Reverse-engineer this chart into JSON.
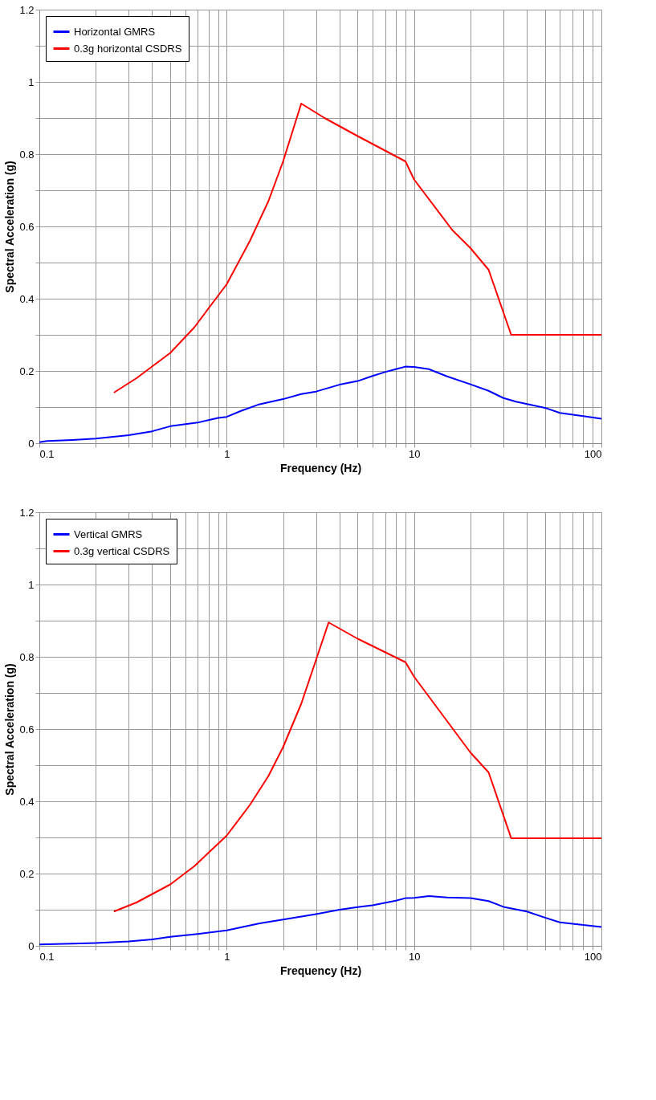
{
  "chart_data": [
    {
      "type": "line",
      "xlabel": "Frequency (Hz)",
      "ylabel": "Spectral Acceleration (g)",
      "log": "x",
      "grid": true,
      "legend": "top left",
      "line_style": "solid",
      "xlim": [
        0.1,
        100
      ],
      "ylim": [
        0,
        1.2
      ],
      "xticks": [
        0.1,
        {
          "value": 0.2,
          "label": null
        },
        {
          "value": 0.3,
          "label": null
        },
        {
          "value": 0.4,
          "label": null
        },
        {
          "value": 0.5,
          "label": null
        },
        {
          "value": 0.6,
          "label": null
        },
        {
          "value": 0.7,
          "label": null
        },
        {
          "value": 0.8,
          "label": null
        },
        {
          "value": 0.9,
          "label": null
        },
        1,
        {
          "value": 2,
          "label": null
        },
        {
          "value": 3,
          "label": null
        },
        {
          "value": 4,
          "label": null
        },
        {
          "value": 5,
          "label": null
        },
        {
          "value": 6,
          "label": null
        },
        {
          "value": 7,
          "label": null
        },
        {
          "value": 8,
          "label": null
        },
        {
          "value": 9,
          "label": null
        },
        10,
        {
          "value": 20,
          "label": null
        },
        {
          "value": 30,
          "label": null
        },
        {
          "value": 40,
          "label": null
        },
        {
          "value": 50,
          "label": null
        },
        {
          "value": 60,
          "label": null
        },
        {
          "value": 70,
          "label": null
        },
        {
          "value": 80,
          "label": null
        },
        {
          "value": 90,
          "label": null
        },
        100
      ],
      "yticks": [
        0,
        {
          "value": 0.1,
          "label": null
        },
        0.2,
        {
          "value": 0.3,
          "label": null
        },
        0.4,
        {
          "value": 0.5,
          "label": null
        },
        0.6,
        {
          "value": 0.7,
          "label": null
        },
        0.8,
        {
          "value": 0.9,
          "label": null
        },
        1,
        {
          "value": 1.1,
          "label": null
        },
        1.2
      ],
      "series": [
        {
          "name": "Horizontal GMRS",
          "color": "#0000ff",
          "x": [
            0.1,
            0.11,
            0.15,
            0.2,
            0.3,
            0.4,
            0.5,
            0.7,
            0.9,
            1,
            1.2,
            1.5,
            2,
            2.5,
            3,
            4,
            5,
            6,
            7,
            8,
            9,
            10,
            12,
            15,
            20,
            25,
            30,
            35,
            50,
            60,
            80,
            100
          ],
          "values": [
            0.003,
            0.006,
            0.009,
            0.013,
            0.022,
            0.033,
            0.047,
            0.057,
            0.07,
            0.073,
            0.09,
            0.108,
            0.122,
            0.136,
            0.143,
            0.162,
            0.172,
            0.186,
            0.197,
            0.205,
            0.212,
            0.211,
            0.205,
            0.185,
            0.163,
            0.145,
            0.125,
            0.115,
            0.098,
            0.084,
            0.075,
            0.068
          ]
        },
        {
          "name": "0.3g horizontal CSDRS",
          "color": "#ff0000",
          "x": [
            0.25,
            0.33,
            0.5,
            0.67,
            1,
            1.33,
            1.67,
            2,
            2.5,
            3.33,
            5,
            9,
            10,
            16,
            20,
            25,
            33,
            100
          ],
          "values": [
            0.14,
            0.18,
            0.25,
            0.32,
            0.44,
            0.56,
            0.67,
            0.78,
            0.94,
            0.9,
            0.85,
            0.78,
            0.73,
            0.59,
            0.54,
            0.48,
            0.3,
            0.3
          ]
        }
      ]
    },
    {
      "type": "line",
      "xlabel": "Frequency (Hz)",
      "ylabel": "Spectral Acceleration (g)",
      "log": "x",
      "grid": true,
      "legend": "top left",
      "line_style": "solid",
      "xlim": [
        0.1,
        100
      ],
      "ylim": [
        0,
        1.2
      ],
      "xticks": [
        0.1,
        {
          "value": 0.2,
          "label": null
        },
        {
          "value": 0.3,
          "label": null
        },
        {
          "value": 0.4,
          "label": null
        },
        {
          "value": 0.5,
          "label": null
        },
        {
          "value": 0.6,
          "label": null
        },
        {
          "value": 0.7,
          "label": null
        },
        {
          "value": 0.8,
          "label": null
        },
        {
          "value": 0.9,
          "label": null
        },
        1,
        {
          "value": 2,
          "label": null
        },
        {
          "value": 3,
          "label": null
        },
        {
          "value": 4,
          "label": null
        },
        {
          "value": 5,
          "label": null
        },
        {
          "value": 6,
          "label": null
        },
        {
          "value": 7,
          "label": null
        },
        {
          "value": 8,
          "label": null
        },
        {
          "value": 9,
          "label": null
        },
        10,
        {
          "value": 20,
          "label": null
        },
        {
          "value": 30,
          "label": null
        },
        {
          "value": 40,
          "label": null
        },
        {
          "value": 50,
          "label": null
        },
        {
          "value": 60,
          "label": null
        },
        {
          "value": 70,
          "label": null
        },
        {
          "value": 80,
          "label": null
        },
        {
          "value": 90,
          "label": null
        },
        100
      ],
      "yticks": [
        0,
        {
          "value": 0.1,
          "label": null
        },
        0.2,
        {
          "value": 0.3,
          "label": null
        },
        0.4,
        {
          "value": 0.5,
          "label": null
        },
        0.6,
        {
          "value": 0.7,
          "label": null
        },
        0.8,
        {
          "value": 0.9,
          "label": null
        },
        1,
        {
          "value": 1.1,
          "label": null
        },
        1.2
      ],
      "series": [
        {
          "name": "Vertical GMRS",
          "color": "#0000ff",
          "x": [
            0.1,
            0.15,
            0.2,
            0.3,
            0.4,
            0.5,
            0.7,
            1,
            1.5,
            2,
            3,
            4,
            5,
            6,
            8,
            9,
            10,
            12,
            15,
            20,
            25,
            30,
            40,
            50,
            60,
            100
          ],
          "values": [
            0.004,
            0.006,
            0.008,
            0.012,
            0.018,
            0.025,
            0.033,
            0.043,
            0.062,
            0.073,
            0.088,
            0.1,
            0.107,
            0.112,
            0.125,
            0.132,
            0.133,
            0.138,
            0.134,
            0.132,
            0.124,
            0.108,
            0.095,
            0.078,
            0.065,
            0.052
          ]
        },
        {
          "name": "0.3g vertical CSDRS",
          "color": "#ff0000",
          "x": [
            0.25,
            0.33,
            0.5,
            0.67,
            1,
            1.33,
            1.67,
            2,
            2.5,
            3.5,
            5,
            9,
            10,
            20,
            25,
            33,
            100
          ],
          "values": [
            0.095,
            0.12,
            0.17,
            0.22,
            0.305,
            0.39,
            0.47,
            0.55,
            0.67,
            0.895,
            0.85,
            0.785,
            0.745,
            0.535,
            0.48,
            0.298,
            0.298
          ]
        }
      ]
    }
  ]
}
